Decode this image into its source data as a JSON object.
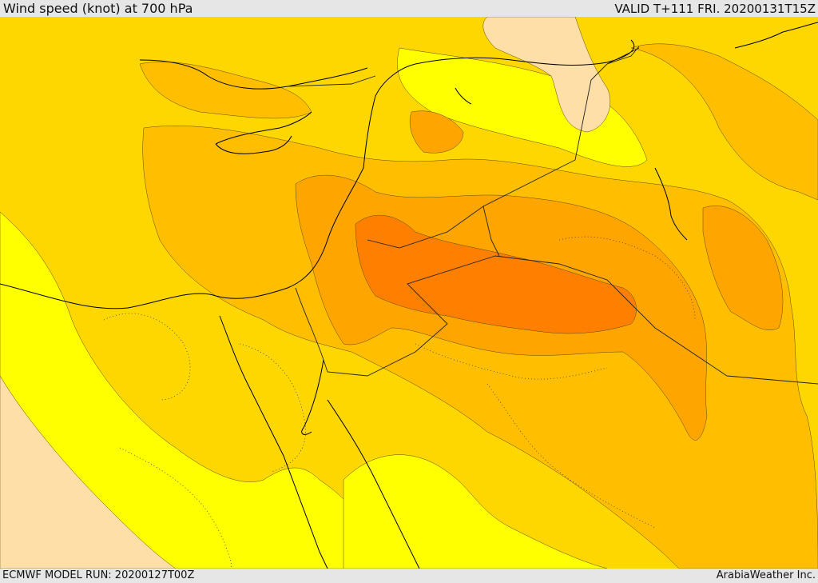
{
  "header": {
    "title": "Wind speed (knot) at 700 hPa",
    "valid": "VALID T+111 FRI. 20200131T15Z"
  },
  "footer": {
    "model_run": "ECMWF MODEL RUN: 20200127T00Z",
    "credit": "ArabiaWeather Inc."
  },
  "colors": {
    "lowest": "#ffdfa8",
    "low": "#ffff00",
    "medium": "#ffd700",
    "high": "#ffbf00",
    "higher": "#ffa500",
    "highest": "#ff7f00",
    "coastline": "#000000",
    "border": "#333333"
  }
}
